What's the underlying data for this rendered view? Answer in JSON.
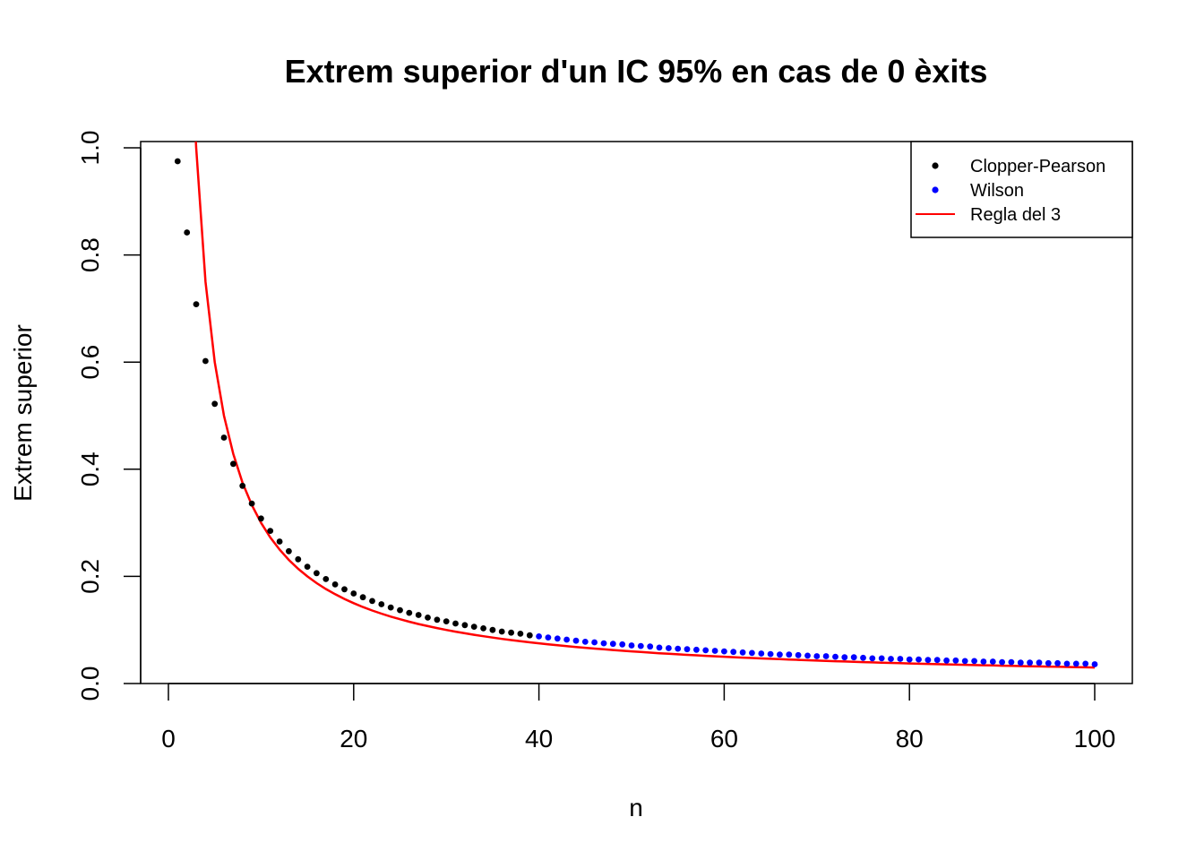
{
  "chart_data": {
    "type": "scatter",
    "title": "Extrem superior d'un IC 95% en cas de 0 èxits",
    "xlabel": "n",
    "ylabel": "Extrem superior",
    "xlim": [
      0,
      100
    ],
    "ylim": [
      0,
      1
    ],
    "x_ticks": [
      "0",
      "20",
      "40",
      "60",
      "80",
      "100"
    ],
    "y_ticks": [
      "0.0",
      "0.2",
      "0.4",
      "0.6",
      "0.8",
      "1.0"
    ],
    "legend_position": "top-right",
    "series": [
      {
        "name": "Clopper-Pearson",
        "kind": "points",
        "color": "#000000",
        "x": [
          1,
          2,
          3,
          4,
          5,
          6,
          7,
          8,
          9,
          10,
          11,
          12,
          13,
          14,
          15,
          16,
          17,
          18,
          19,
          20,
          21,
          22,
          23,
          24,
          25,
          26,
          27,
          28,
          29,
          30,
          31,
          32,
          33,
          34,
          35,
          36,
          37,
          38,
          39
        ],
        "y": [
          0.975,
          0.842,
          0.708,
          0.602,
          0.522,
          0.459,
          0.41,
          0.369,
          0.336,
          0.308,
          0.285,
          0.265,
          0.247,
          0.232,
          0.218,
          0.206,
          0.195,
          0.185,
          0.176,
          0.168,
          0.161,
          0.154,
          0.148,
          0.142,
          0.137,
          0.132,
          0.128,
          0.123,
          0.119,
          0.116,
          0.112,
          0.109,
          0.106,
          0.103,
          0.1,
          0.097,
          0.095,
          0.093,
          0.09
        ]
      },
      {
        "name": "Wilson",
        "kind": "points",
        "color": "#0000ff",
        "x": [
          40,
          41,
          42,
          43,
          44,
          45,
          46,
          47,
          48,
          49,
          50,
          51,
          52,
          53,
          54,
          55,
          56,
          57,
          58,
          59,
          60,
          61,
          62,
          63,
          64,
          65,
          66,
          67,
          68,
          69,
          70,
          71,
          72,
          73,
          74,
          75,
          76,
          77,
          78,
          79,
          80,
          81,
          82,
          83,
          84,
          85,
          86,
          87,
          88,
          89,
          90,
          91,
          92,
          93,
          94,
          95,
          96,
          97,
          98,
          99,
          100
        ],
        "y": [
          0.088,
          0.086,
          0.084,
          0.082,
          0.08,
          0.078,
          0.077,
          0.075,
          0.074,
          0.073,
          0.071,
          0.07,
          0.069,
          0.067,
          0.066,
          0.065,
          0.064,
          0.063,
          0.062,
          0.061,
          0.06,
          0.059,
          0.058,
          0.057,
          0.056,
          0.055,
          0.054,
          0.054,
          0.053,
          0.052,
          0.051,
          0.051,
          0.05,
          0.049,
          0.049,
          0.048,
          0.047,
          0.047,
          0.046,
          0.046,
          0.045,
          0.045,
          0.044,
          0.044,
          0.043,
          0.043,
          0.042,
          0.042,
          0.041,
          0.041,
          0.04,
          0.04,
          0.039,
          0.039,
          0.039,
          0.038,
          0.038,
          0.037,
          0.037,
          0.037,
          0.036
        ]
      },
      {
        "name": "Regla del 3",
        "kind": "line",
        "color": "#ff0000",
        "formula": "3/n",
        "x_range": [
          3,
          100
        ]
      }
    ]
  }
}
